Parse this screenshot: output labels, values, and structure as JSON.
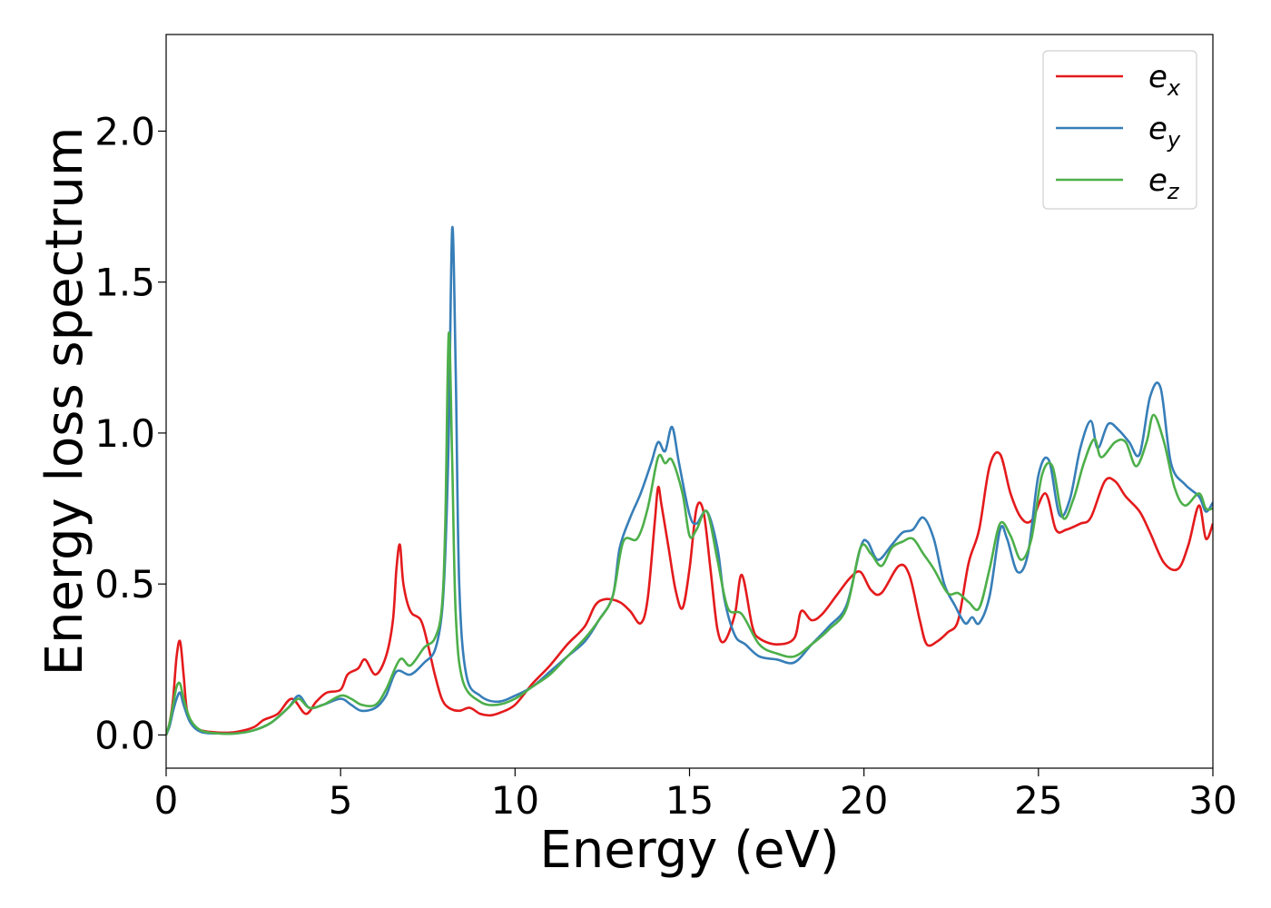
{
  "chart_data": {
    "type": "line",
    "xlabel": "Energy (eV)",
    "ylabel": "Energy loss spectrum",
    "xlim": [
      0,
      30
    ],
    "ylim": [
      -0.11,
      2.32
    ],
    "xticks": [
      0,
      5,
      10,
      15,
      20,
      25,
      30
    ],
    "xtick_labels": [
      "0",
      "5",
      "10",
      "15",
      "20",
      "25",
      "30"
    ],
    "yticks": [
      0.0,
      0.5,
      1.0,
      1.5,
      2.0
    ],
    "ytick_labels": [
      "0.0",
      "0.5",
      "1.0",
      "1.5",
      "2.0"
    ],
    "grid": false,
    "legend_position": "top-right",
    "series": [
      {
        "name": "e_x",
        "legend_base": "e",
        "legend_sub": "x",
        "color": "#e41a1c",
        "points": [
          [
            0,
            0
          ],
          [
            0.1,
            0.04
          ],
          [
            0.2,
            0.12
          ],
          [
            0.3,
            0.26
          ],
          [
            0.4,
            0.31
          ],
          [
            0.5,
            0.2
          ],
          [
            0.6,
            0.08
          ],
          [
            0.8,
            0.03
          ],
          [
            1.0,
            0.015
          ],
          [
            1.5,
            0.008
          ],
          [
            2.0,
            0.01
          ],
          [
            2.5,
            0.025
          ],
          [
            2.8,
            0.05
          ],
          [
            3.2,
            0.07
          ],
          [
            3.6,
            0.12
          ],
          [
            4.0,
            0.07
          ],
          [
            4.3,
            0.11
          ],
          [
            4.6,
            0.14
          ],
          [
            5.0,
            0.15
          ],
          [
            5.2,
            0.2
          ],
          [
            5.5,
            0.22
          ],
          [
            5.7,
            0.25
          ],
          [
            6.0,
            0.2
          ],
          [
            6.3,
            0.26
          ],
          [
            6.5,
            0.38
          ],
          [
            6.6,
            0.55
          ],
          [
            6.7,
            0.63
          ],
          [
            6.8,
            0.5
          ],
          [
            7.0,
            0.41
          ],
          [
            7.3,
            0.38
          ],
          [
            7.5,
            0.3
          ],
          [
            7.7,
            0.2
          ],
          [
            7.9,
            0.12
          ],
          [
            8.1,
            0.09
          ],
          [
            8.4,
            0.08
          ],
          [
            8.7,
            0.09
          ],
          [
            9.0,
            0.07
          ],
          [
            9.3,
            0.065
          ],
          [
            9.6,
            0.075
          ],
          [
            10.0,
            0.1
          ],
          [
            10.5,
            0.17
          ],
          [
            11.0,
            0.23
          ],
          [
            11.5,
            0.3
          ],
          [
            12.0,
            0.36
          ],
          [
            12.3,
            0.43
          ],
          [
            12.6,
            0.45
          ],
          [
            13.0,
            0.44
          ],
          [
            13.3,
            0.41
          ],
          [
            13.6,
            0.37
          ],
          [
            13.8,
            0.45
          ],
          [
            14.0,
            0.7
          ],
          [
            14.1,
            0.82
          ],
          [
            14.2,
            0.76
          ],
          [
            14.4,
            0.62
          ],
          [
            14.6,
            0.48
          ],
          [
            14.8,
            0.42
          ],
          [
            15.0,
            0.55
          ],
          [
            15.2,
            0.75
          ],
          [
            15.4,
            0.74
          ],
          [
            15.6,
            0.55
          ],
          [
            15.8,
            0.35
          ],
          [
            16.0,
            0.31
          ],
          [
            16.3,
            0.4
          ],
          [
            16.5,
            0.53
          ],
          [
            16.8,
            0.36
          ],
          [
            17.0,
            0.32
          ],
          [
            17.5,
            0.3
          ],
          [
            18.0,
            0.32
          ],
          [
            18.2,
            0.41
          ],
          [
            18.5,
            0.38
          ],
          [
            18.8,
            0.4
          ],
          [
            19.2,
            0.46
          ],
          [
            19.6,
            0.52
          ],
          [
            19.9,
            0.54
          ],
          [
            20.2,
            0.48
          ],
          [
            20.5,
            0.47
          ],
          [
            21.0,
            0.56
          ],
          [
            21.3,
            0.53
          ],
          [
            21.6,
            0.38
          ],
          [
            21.8,
            0.3
          ],
          [
            22.1,
            0.31
          ],
          [
            22.4,
            0.34
          ],
          [
            22.7,
            0.38
          ],
          [
            23.0,
            0.57
          ],
          [
            23.3,
            0.68
          ],
          [
            23.6,
            0.89
          ],
          [
            23.9,
            0.93
          ],
          [
            24.2,
            0.8
          ],
          [
            24.5,
            0.72
          ],
          [
            24.8,
            0.71
          ],
          [
            25.2,
            0.8
          ],
          [
            25.5,
            0.68
          ],
          [
            25.8,
            0.68
          ],
          [
            26.2,
            0.7
          ],
          [
            26.5,
            0.72
          ],
          [
            26.9,
            0.84
          ],
          [
            27.2,
            0.84
          ],
          [
            27.5,
            0.79
          ],
          [
            27.9,
            0.74
          ],
          [
            28.2,
            0.67
          ],
          [
            28.6,
            0.57
          ],
          [
            29.0,
            0.55
          ],
          [
            29.3,
            0.63
          ],
          [
            29.6,
            0.76
          ],
          [
            29.8,
            0.65
          ],
          [
            30.0,
            0.7
          ]
        ]
      },
      {
        "name": "e_y",
        "legend_base": "e",
        "legend_sub": "y",
        "color": "#377eb8",
        "points": [
          [
            0,
            0
          ],
          [
            0.1,
            0.03
          ],
          [
            0.2,
            0.08
          ],
          [
            0.3,
            0.12
          ],
          [
            0.4,
            0.14
          ],
          [
            0.5,
            0.1
          ],
          [
            0.7,
            0.04
          ],
          [
            1.0,
            0.01
          ],
          [
            1.5,
            0.005
          ],
          [
            2.0,
            0.005
          ],
          [
            2.5,
            0.015
          ],
          [
            3.0,
            0.04
          ],
          [
            3.5,
            0.09
          ],
          [
            3.8,
            0.13
          ],
          [
            4.1,
            0.09
          ],
          [
            4.5,
            0.1
          ],
          [
            5.0,
            0.12
          ],
          [
            5.3,
            0.1
          ],
          [
            5.6,
            0.08
          ],
          [
            6.0,
            0.09
          ],
          [
            6.3,
            0.13
          ],
          [
            6.6,
            0.21
          ],
          [
            7.0,
            0.2
          ],
          [
            7.4,
            0.24
          ],
          [
            7.7,
            0.28
          ],
          [
            7.9,
            0.4
          ],
          [
            8.0,
            0.6
          ],
          [
            8.1,
            1.0
          ],
          [
            8.2,
            1.68
          ],
          [
            8.3,
            1.2
          ],
          [
            8.4,
            0.5
          ],
          [
            8.6,
            0.2
          ],
          [
            9.0,
            0.13
          ],
          [
            9.5,
            0.11
          ],
          [
            10.0,
            0.13
          ],
          [
            10.5,
            0.16
          ],
          [
            11.0,
            0.21
          ],
          [
            11.5,
            0.26
          ],
          [
            12.0,
            0.31
          ],
          [
            12.4,
            0.38
          ],
          [
            12.8,
            0.46
          ],
          [
            13.0,
            0.62
          ],
          [
            13.3,
            0.72
          ],
          [
            13.6,
            0.8
          ],
          [
            13.9,
            0.9
          ],
          [
            14.1,
            0.97
          ],
          [
            14.3,
            0.94
          ],
          [
            14.5,
            1.02
          ],
          [
            14.7,
            0.9
          ],
          [
            15.0,
            0.73
          ],
          [
            15.2,
            0.7
          ],
          [
            15.5,
            0.74
          ],
          [
            15.8,
            0.62
          ],
          [
            16.0,
            0.45
          ],
          [
            16.3,
            0.33
          ],
          [
            16.6,
            0.3
          ],
          [
            17.0,
            0.26
          ],
          [
            17.5,
            0.25
          ],
          [
            18.0,
            0.24
          ],
          [
            18.5,
            0.3
          ],
          [
            19.0,
            0.36
          ],
          [
            19.5,
            0.43
          ],
          [
            19.9,
            0.62
          ],
          [
            20.1,
            0.64
          ],
          [
            20.4,
            0.58
          ],
          [
            20.8,
            0.63
          ],
          [
            21.1,
            0.67
          ],
          [
            21.4,
            0.68
          ],
          [
            21.7,
            0.72
          ],
          [
            22.0,
            0.65
          ],
          [
            22.3,
            0.5
          ],
          [
            22.6,
            0.43
          ],
          [
            22.9,
            0.37
          ],
          [
            23.1,
            0.39
          ],
          [
            23.3,
            0.37
          ],
          [
            23.6,
            0.46
          ],
          [
            23.9,
            0.68
          ],
          [
            24.1,
            0.65
          ],
          [
            24.4,
            0.54
          ],
          [
            24.7,
            0.6
          ],
          [
            25.0,
            0.86
          ],
          [
            25.3,
            0.91
          ],
          [
            25.6,
            0.73
          ],
          [
            25.9,
            0.78
          ],
          [
            26.2,
            0.95
          ],
          [
            26.5,
            1.04
          ],
          [
            26.7,
            0.95
          ],
          [
            27.0,
            1.03
          ],
          [
            27.3,
            1.01
          ],
          [
            27.6,
            0.97
          ],
          [
            27.9,
            0.93
          ],
          [
            28.2,
            1.12
          ],
          [
            28.5,
            1.15
          ],
          [
            28.8,
            0.9
          ],
          [
            29.2,
            0.83
          ],
          [
            29.6,
            0.79
          ],
          [
            29.8,
            0.74
          ],
          [
            30.0,
            0.77
          ]
        ]
      },
      {
        "name": "e_z",
        "legend_base": "e",
        "legend_sub": "z",
        "color": "#4daf4a",
        "points": [
          [
            0,
            0
          ],
          [
            0.1,
            0.04
          ],
          [
            0.2,
            0.1
          ],
          [
            0.3,
            0.16
          ],
          [
            0.4,
            0.17
          ],
          [
            0.5,
            0.12
          ],
          [
            0.7,
            0.05
          ],
          [
            1.0,
            0.015
          ],
          [
            1.5,
            0.005
          ],
          [
            2.0,
            0.005
          ],
          [
            2.5,
            0.015
          ],
          [
            3.0,
            0.04
          ],
          [
            3.5,
            0.09
          ],
          [
            3.8,
            0.12
          ],
          [
            4.1,
            0.09
          ],
          [
            4.5,
            0.1
          ],
          [
            5.0,
            0.13
          ],
          [
            5.3,
            0.12
          ],
          [
            5.6,
            0.1
          ],
          [
            6.0,
            0.1
          ],
          [
            6.3,
            0.15
          ],
          [
            6.7,
            0.25
          ],
          [
            7.0,
            0.23
          ],
          [
            7.4,
            0.29
          ],
          [
            7.7,
            0.32
          ],
          [
            7.9,
            0.42
          ],
          [
            8.0,
            0.7
          ],
          [
            8.1,
            1.33
          ],
          [
            8.2,
            0.9
          ],
          [
            8.3,
            0.4
          ],
          [
            8.5,
            0.18
          ],
          [
            9.0,
            0.11
          ],
          [
            9.5,
            0.1
          ],
          [
            10.0,
            0.12
          ],
          [
            10.5,
            0.16
          ],
          [
            11.0,
            0.2
          ],
          [
            11.5,
            0.26
          ],
          [
            12.0,
            0.32
          ],
          [
            12.4,
            0.38
          ],
          [
            12.8,
            0.46
          ],
          [
            13.1,
            0.64
          ],
          [
            13.5,
            0.65
          ],
          [
            13.8,
            0.75
          ],
          [
            14.1,
            0.92
          ],
          [
            14.3,
            0.9
          ],
          [
            14.5,
            0.91
          ],
          [
            14.8,
            0.8
          ],
          [
            15.0,
            0.66
          ],
          [
            15.2,
            0.68
          ],
          [
            15.5,
            0.74
          ],
          [
            15.8,
            0.58
          ],
          [
            16.1,
            0.42
          ],
          [
            16.5,
            0.4
          ],
          [
            17.0,
            0.3
          ],
          [
            17.5,
            0.27
          ],
          [
            18.0,
            0.26
          ],
          [
            18.5,
            0.3
          ],
          [
            19.0,
            0.35
          ],
          [
            19.5,
            0.42
          ],
          [
            19.9,
            0.62
          ],
          [
            20.2,
            0.6
          ],
          [
            20.5,
            0.56
          ],
          [
            20.8,
            0.62
          ],
          [
            21.1,
            0.64
          ],
          [
            21.4,
            0.65
          ],
          [
            21.7,
            0.6
          ],
          [
            22.0,
            0.55
          ],
          [
            22.4,
            0.47
          ],
          [
            22.7,
            0.47
          ],
          [
            23.0,
            0.44
          ],
          [
            23.3,
            0.42
          ],
          [
            23.6,
            0.55
          ],
          [
            23.9,
            0.7
          ],
          [
            24.2,
            0.66
          ],
          [
            24.5,
            0.58
          ],
          [
            24.8,
            0.65
          ],
          [
            25.1,
            0.86
          ],
          [
            25.4,
            0.89
          ],
          [
            25.7,
            0.72
          ],
          [
            26.0,
            0.78
          ],
          [
            26.3,
            0.9
          ],
          [
            26.6,
            0.98
          ],
          [
            26.8,
            0.92
          ],
          [
            27.2,
            0.97
          ],
          [
            27.5,
            0.97
          ],
          [
            27.8,
            0.89
          ],
          [
            28.1,
            0.97
          ],
          [
            28.3,
            1.06
          ],
          [
            28.6,
            0.97
          ],
          [
            28.9,
            0.82
          ],
          [
            29.2,
            0.76
          ],
          [
            29.6,
            0.8
          ],
          [
            29.8,
            0.75
          ],
          [
            30.0,
            0.75
          ]
        ]
      }
    ]
  }
}
